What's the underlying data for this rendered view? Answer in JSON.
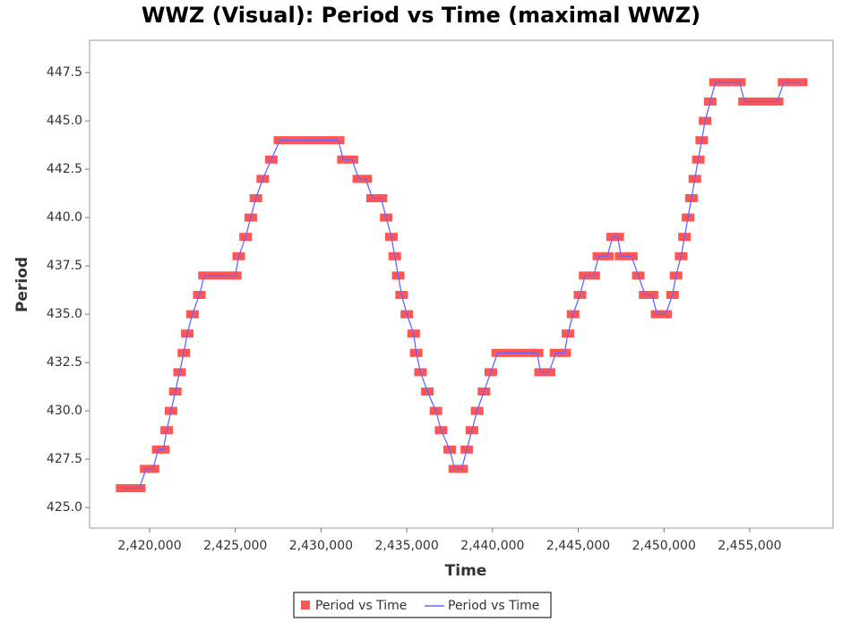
{
  "chart_data": {
    "type": "scatter-line",
    "title": "WWZ (Visual): Period vs Time (maximal WWZ)",
    "x_label": "Time",
    "y_label": "Period",
    "x": [
      2418400,
      2418900,
      2419400,
      2419800,
      2420200,
      2420500,
      2420800,
      2421000,
      2421250,
      2421500,
      2421750,
      2422000,
      2422200,
      2422500,
      2422900,
      2423200,
      2423700,
      2424200,
      2424700,
      2425000,
      2425200,
      2425600,
      2425900,
      2426200,
      2426600,
      2427100,
      2427600,
      2428300,
      2429000,
      2429700,
      2430400,
      2431000,
      2431300,
      2431800,
      2432200,
      2432600,
      2433000,
      2433500,
      2433800,
      2434100,
      2434300,
      2434500,
      2434700,
      2435000,
      2435400,
      2435550,
      2435800,
      2436200,
      2436700,
      2437000,
      2437500,
      2437800,
      2438200,
      2438500,
      2438800,
      2439100,
      2439500,
      2439900,
      2440300,
      2440900,
      2441500,
      2442100,
      2442600,
      2442800,
      2443300,
      2443700,
      2444200,
      2444400,
      2444700,
      2445100,
      2445400,
      2445900,
      2446200,
      2446700,
      2447000,
      2447300,
      2447500,
      2448100,
      2448500,
      2448900,
      2449300,
      2449600,
      2450100,
      2450500,
      2450700,
      2451000,
      2451200,
      2451400,
      2451600,
      2451800,
      2452000,
      2452200,
      2452400,
      2452700,
      2453000,
      2453500,
      2454000,
      2454400,
      2454700,
      2455200,
      2455700,
      2456200,
      2456600,
      2457000,
      2457500,
      2458000
    ],
    "series": [
      {
        "name": "Period vs Time",
        "color": "#ff5555",
        "values": [
          426,
          426,
          426,
          427,
          427,
          428,
          428,
          429,
          430,
          431,
          432,
          433,
          434,
          435,
          436,
          437,
          437,
          437,
          437,
          437,
          438,
          439,
          440,
          441,
          442,
          443,
          444,
          444,
          444,
          444,
          444,
          444,
          443,
          443,
          442,
          442,
          441,
          441,
          440,
          439,
          438,
          437,
          436,
          435,
          434,
          433,
          432,
          431,
          430,
          429,
          428,
          427,
          427,
          428,
          429,
          430,
          431,
          432,
          433,
          433,
          433,
          433,
          433,
          432,
          432,
          433,
          433,
          434,
          435,
          436,
          437,
          437,
          438,
          438,
          439,
          439,
          438,
          438,
          437,
          436,
          436,
          435,
          435,
          436,
          437,
          438,
          439,
          440,
          441,
          442,
          443,
          444,
          445,
          446,
          447,
          447,
          447,
          447,
          446,
          446,
          446,
          446,
          446,
          447,
          447,
          447
        ]
      },
      {
        "name": "Period vs Time",
        "color": "#6666ff",
        "values": [
          426,
          426,
          426,
          427,
          427,
          428,
          428,
          429,
          430,
          431,
          432,
          433,
          434,
          435,
          436,
          437,
          437,
          437,
          437,
          437,
          438,
          439,
          440,
          441,
          442,
          443,
          444,
          444,
          444,
          444,
          444,
          444,
          443,
          443,
          442,
          442,
          441,
          441,
          440,
          439,
          438,
          437,
          436,
          435,
          434,
          433,
          432,
          431,
          430,
          429,
          428,
          427,
          427,
          428,
          429,
          430,
          431,
          432,
          433,
          433,
          433,
          433,
          433,
          432,
          432,
          433,
          433,
          434,
          435,
          436,
          437,
          437,
          438,
          438,
          439,
          439,
          438,
          438,
          437,
          436,
          436,
          435,
          435,
          436,
          437,
          438,
          439,
          440,
          441,
          442,
          443,
          444,
          445,
          446,
          447,
          447,
          447,
          447,
          446,
          446,
          446,
          446,
          446,
          447,
          447,
          447
        ]
      }
    ],
    "xlim": [
      2416500,
      2459860
    ],
    "ylim": [
      423.94,
      449.17
    ],
    "xticks": [
      {
        "value": 2420000,
        "label": "2,420,000"
      },
      {
        "value": 2425000,
        "label": "2,425,000"
      },
      {
        "value": 2430000,
        "label": "2,430,000"
      },
      {
        "value": 2435000,
        "label": "2,435,000"
      },
      {
        "value": 2440000,
        "label": "2,440,000"
      },
      {
        "value": 2445000,
        "label": "2,445,000"
      },
      {
        "value": 2450000,
        "label": "2,450,000"
      },
      {
        "value": 2455000,
        "label": "2,455,000"
      }
    ],
    "yticks": [
      {
        "value": 425,
        "label": "425.0"
      },
      {
        "value": 427.5,
        "label": "427.5"
      },
      {
        "value": 430,
        "label": "430.0"
      },
      {
        "value": 432.5,
        "label": "432.5"
      },
      {
        "value": 435,
        "label": "435.0"
      },
      {
        "value": 437.5,
        "label": "437.5"
      },
      {
        "value": 440,
        "label": "440.0"
      },
      {
        "value": 442.5,
        "label": "442.5"
      },
      {
        "value": 445,
        "label": "445.0"
      },
      {
        "value": 447.5,
        "label": "447.5"
      }
    ]
  }
}
